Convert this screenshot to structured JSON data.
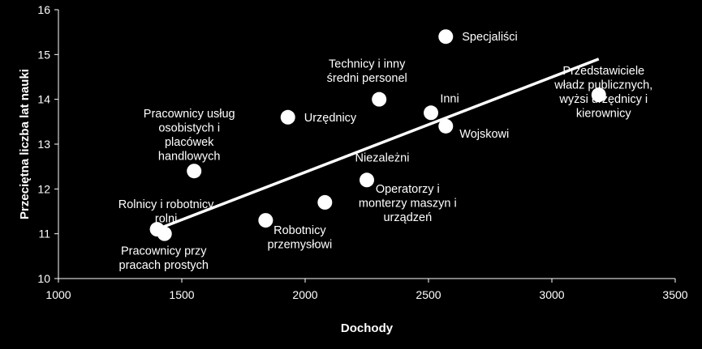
{
  "chart_data": {
    "type": "scatter",
    "xlabel": "Dochody",
    "ylabel": "Przeciętna liczba lat nauki",
    "xlim": [
      1000,
      3500
    ],
    "ylim": [
      10,
      16
    ],
    "xticks": [
      "1000",
      "1500",
      "2000",
      "2500",
      "3000",
      "3500"
    ],
    "yticks": [
      "10",
      "11",
      "12",
      "13",
      "14",
      "15",
      "16"
    ],
    "grid": false,
    "legend": "none",
    "colors": {
      "background": "#000000",
      "foreground": "#ffffff",
      "point": "#ffffff",
      "trendline": "#ffffff"
    },
    "points": [
      {
        "x": 2570,
        "y": 15.4,
        "label": [
          "Specjaliści"
        ]
      },
      {
        "x": 2300,
        "y": 14.0,
        "label": [
          "Technicy i inny",
          "średni personel"
        ]
      },
      {
        "x": 2510,
        "y": 13.7,
        "label": [
          "Inni"
        ]
      },
      {
        "x": 3190,
        "y": 14.1,
        "label": [
          "Przedstawiciele",
          "władz publicznych,",
          "wyżsi urzędnicy i",
          "kierownicy"
        ]
      },
      {
        "x": 1930,
        "y": 13.6,
        "label": [
          "Urzędnicy"
        ]
      },
      {
        "x": 2570,
        "y": 13.4,
        "label": [
          "Wojskowi"
        ]
      },
      {
        "x": 1550,
        "y": 12.4,
        "label": [
          "Pracownicy usług",
          "osobistych i",
          "placówek",
          "handlowych"
        ]
      },
      {
        "x": 2250,
        "y": 12.2,
        "label": [
          "Niezależni"
        ]
      },
      {
        "x": 2080,
        "y": 11.7,
        "label": [
          "Operatorzy i",
          "monterzy maszyn i",
          "urządzeń"
        ]
      },
      {
        "x": 1840,
        "y": 11.3,
        "label": [
          "Robotnicy",
          "przemysłowi"
        ]
      },
      {
        "x": 1400,
        "y": 11.1,
        "label": [
          "Rolnicy i robotnicy",
          "rolni"
        ]
      },
      {
        "x": 1430,
        "y": 11.0,
        "label": [
          "Pracownicy przy",
          "pracach prostych"
        ]
      }
    ],
    "trendline": {
      "x": [
        1400,
        3190
      ],
      "y": [
        11.1,
        14.9
      ]
    }
  }
}
